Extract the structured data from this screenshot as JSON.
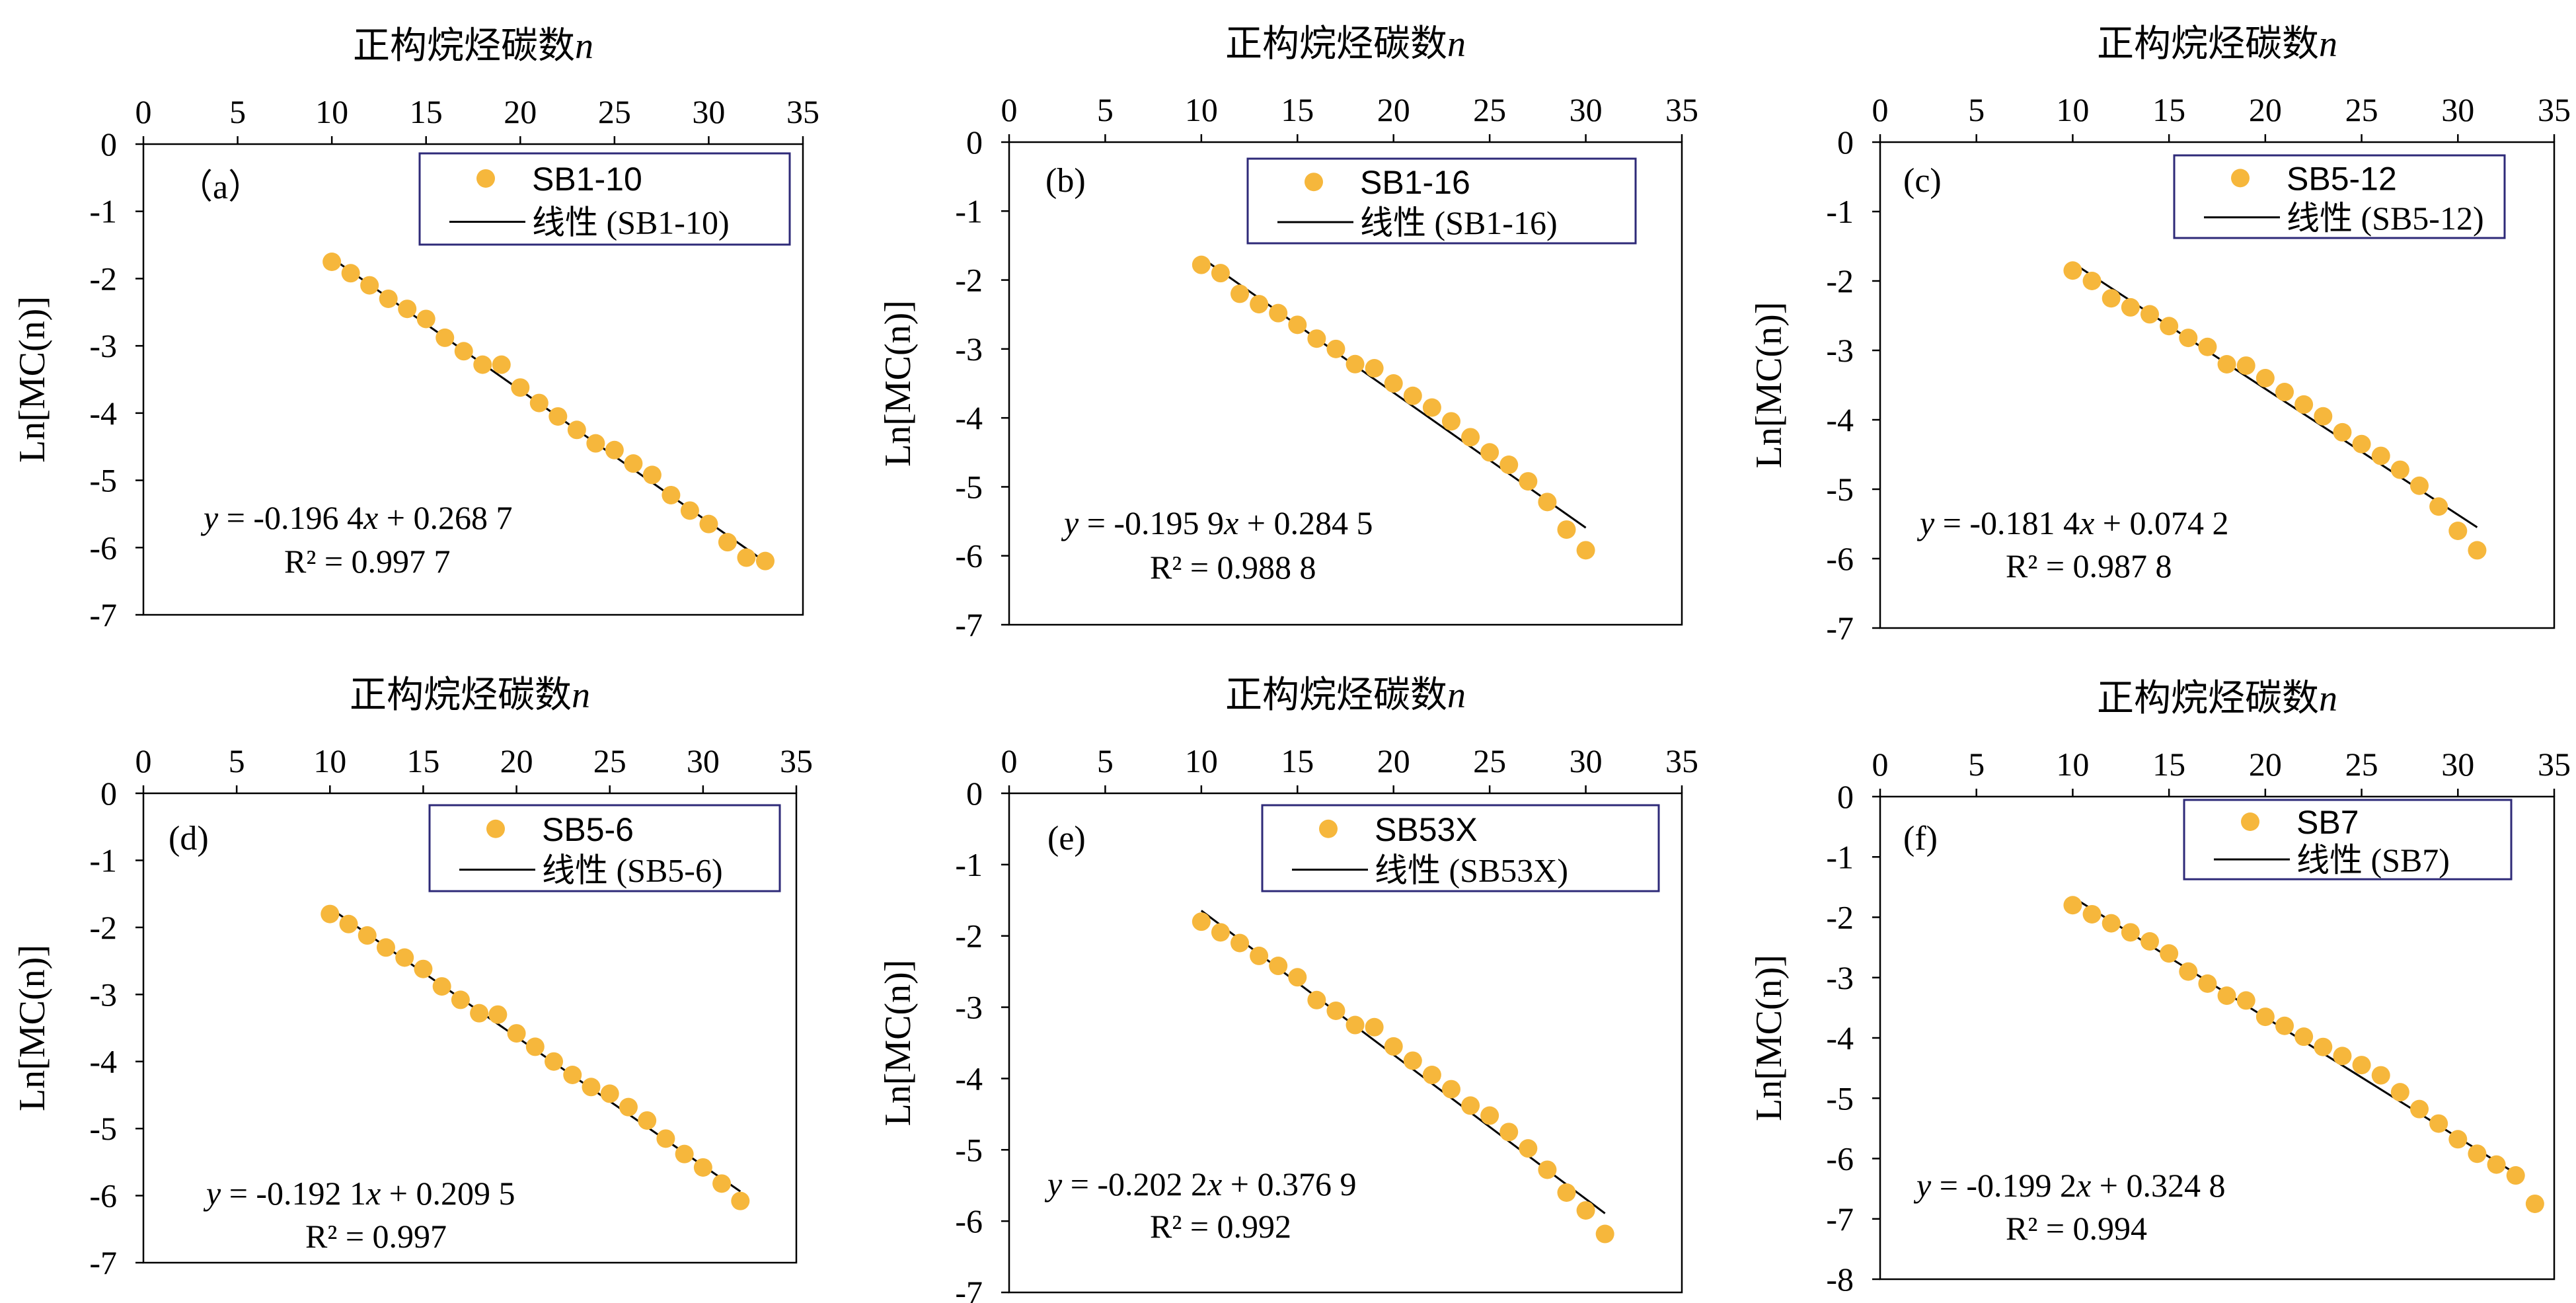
{
  "chart_data": [
    {
      "id": "a",
      "type": "scatter",
      "panel_label": "（a）",
      "xlabel": "正构烷烃碳数",
      "xlabel_var": "n",
      "ylabel": "Ln[MC(n)]",
      "xlim": [
        0,
        35
      ],
      "ylim": [
        -7,
        0
      ],
      "xticks": [
        "0",
        "5",
        "10",
        "15",
        "20",
        "25",
        "30",
        "35"
      ],
      "yticks": [
        "0",
        "-1",
        "-2",
        "-3",
        "-4",
        "-5",
        "-6",
        "-7"
      ],
      "series": [
        {
          "name": "SB1-10",
          "x": [
            10,
            11,
            12,
            13,
            14,
            15,
            16,
            17,
            18,
            19,
            20,
            21,
            22,
            23,
            24,
            25,
            26,
            27,
            28,
            29,
            30,
            31,
            32,
            33
          ],
          "y": [
            -1.75,
            -1.92,
            -2.1,
            -2.3,
            -2.45,
            -2.6,
            -2.88,
            -3.08,
            -3.28,
            -3.28,
            -3.62,
            -3.85,
            -4.05,
            -4.25,
            -4.45,
            -4.55,
            -4.75,
            -4.92,
            -5.22,
            -5.45,
            -5.65,
            -5.92,
            -6.15,
            -6.2
          ],
          "color": "#F6B73C"
        }
      ],
      "trendline": {
        "name": "线性 (SB1-10)",
        "slope": -0.1964,
        "intercept": 0.2687,
        "x_range": [
          10,
          33
        ]
      },
      "equation": {
        "y": "y",
        "mid": " = -0.196 4",
        "x": "x",
        "rest": " + 0.268 7"
      },
      "r2": {
        "label": "R² = 0.997 7"
      },
      "legend_position": "top-right",
      "grid": false
    },
    {
      "id": "b",
      "type": "scatter",
      "panel_label": "(b)",
      "xlabel": "正构烷烃碳数",
      "xlabel_var": "n",
      "ylabel": "Ln[MC(n)]",
      "xlim": [
        0,
        35
      ],
      "ylim": [
        -7,
        0
      ],
      "xticks": [
        "0",
        "5",
        "10",
        "15",
        "20",
        "25",
        "30",
        "35"
      ],
      "yticks": [
        "0",
        "-1",
        "-2",
        "-3",
        "-4",
        "-5",
        "-6",
        "-7"
      ],
      "series": [
        {
          "name": "SB1-16",
          "x": [
            10,
            11,
            12,
            13,
            14,
            15,
            16,
            17,
            18,
            19,
            20,
            21,
            22,
            23,
            24,
            25,
            26,
            27,
            28,
            29,
            30
          ],
          "y": [
            -1.78,
            -1.9,
            -2.2,
            -2.35,
            -2.48,
            -2.65,
            -2.85,
            -3.0,
            -3.22,
            -3.28,
            -3.5,
            -3.68,
            -3.85,
            -4.05,
            -4.28,
            -4.5,
            -4.68,
            -4.92,
            -5.22,
            -5.62,
            -5.92
          ],
          "color": "#F6B73C"
        }
      ],
      "trendline": {
        "name": "线性 (SB1-16)",
        "slope": -0.1959,
        "intercept": 0.2845,
        "x_range": [
          10,
          30
        ]
      },
      "equation": {
        "y": "y",
        "mid": " = -0.195 9",
        "x": "x",
        "rest": " + 0.284 5"
      },
      "r2": {
        "label": "R² = 0.988 8"
      },
      "legend_position": "top-right",
      "grid": false
    },
    {
      "id": "c",
      "type": "scatter",
      "panel_label": "(c)",
      "xlabel": "正构烷烃碳数",
      "xlabel_var": "n",
      "ylabel": "Ln[MC(n)]",
      "xlim": [
        0,
        35
      ],
      "ylim": [
        -7,
        0
      ],
      "xticks": [
        "0",
        "5",
        "10",
        "15",
        "20",
        "25",
        "30",
        "35"
      ],
      "yticks": [
        "0",
        "-1",
        "-2",
        "-3",
        "-4",
        "-5",
        "-6",
        "-7"
      ],
      "series": [
        {
          "name": "SB5-12",
          "x": [
            10,
            11,
            12,
            13,
            14,
            15,
            16,
            17,
            18,
            19,
            20,
            21,
            22,
            23,
            24,
            25,
            26,
            27,
            28,
            29,
            30,
            31
          ],
          "y": [
            -1.85,
            -2.0,
            -2.25,
            -2.38,
            -2.48,
            -2.65,
            -2.82,
            -2.95,
            -3.2,
            -3.22,
            -3.4,
            -3.6,
            -3.78,
            -3.95,
            -4.18,
            -4.35,
            -4.52,
            -4.72,
            -4.95,
            -5.25,
            -5.6,
            -5.88
          ],
          "color": "#F6B73C"
        }
      ],
      "trendline": {
        "name": "线性 (SB5-12)",
        "slope": -0.1814,
        "intercept": 0.0742,
        "x_range": [
          10,
          31
        ]
      },
      "equation": {
        "y": "y",
        "mid": " = -0.181 4",
        "x": "x",
        "rest": " + 0.074 2"
      },
      "r2": {
        "label": "R² = 0.987 8"
      },
      "legend_position": "top-right",
      "grid": false
    },
    {
      "id": "d",
      "type": "scatter",
      "panel_label": "(d)",
      "xlabel": "正构烷烃碳数",
      "xlabel_var": "n",
      "ylabel": "Ln[MC(n)]",
      "xlim": [
        0,
        35
      ],
      "ylim": [
        -7,
        0
      ],
      "xticks": [
        "0",
        "5",
        "10",
        "15",
        "20",
        "25",
        "30",
        "35"
      ],
      "yticks": [
        "0",
        "-1",
        "-2",
        "-3",
        "-4",
        "-5",
        "-6",
        "-7"
      ],
      "series": [
        {
          "name": "SB5-6",
          "x": [
            10,
            11,
            12,
            13,
            14,
            15,
            16,
            17,
            18,
            19,
            20,
            21,
            22,
            23,
            24,
            25,
            26,
            27,
            28,
            29,
            30,
            31,
            32
          ],
          "y": [
            -1.8,
            -1.95,
            -2.12,
            -2.3,
            -2.45,
            -2.62,
            -2.88,
            -3.08,
            -3.28,
            -3.3,
            -3.58,
            -3.78,
            -4.0,
            -4.2,
            -4.38,
            -4.48,
            -4.68,
            -4.88,
            -5.15,
            -5.38,
            -5.58,
            -5.82,
            -6.08
          ],
          "color": "#F6B73C"
        }
      ],
      "trendline": {
        "name": "线性 (SB5-6)",
        "slope": -0.1921,
        "intercept": 0.2095,
        "x_range": [
          10,
          32
        ]
      },
      "equation": {
        "y": "y",
        "mid": " = -0.192 1",
        "x": "x",
        "rest": " + 0.209 5"
      },
      "r2": {
        "label": "R² = 0.997"
      },
      "legend_position": "top-right",
      "grid": false
    },
    {
      "id": "e",
      "type": "scatter",
      "panel_label": "(e)",
      "xlabel": "正构烷烃碳数",
      "xlabel_var": "n",
      "ylabel": "Ln[MC(n)]",
      "xlim": [
        0,
        35
      ],
      "ylim": [
        -7,
        0
      ],
      "xticks": [
        "0",
        "5",
        "10",
        "15",
        "20",
        "25",
        "30",
        "35"
      ],
      "yticks": [
        "0",
        "-1",
        "-2",
        "-3",
        "-4",
        "-5",
        "-6",
        "-7"
      ],
      "series": [
        {
          "name": "SB53X",
          "x": [
            10,
            11,
            12,
            13,
            14,
            15,
            16,
            17,
            18,
            19,
            20,
            21,
            22,
            23,
            24,
            25,
            26,
            27,
            28,
            29,
            30,
            31
          ],
          "y": [
            -1.8,
            -1.95,
            -2.1,
            -2.28,
            -2.42,
            -2.58,
            -2.9,
            -3.05,
            -3.25,
            -3.28,
            -3.55,
            -3.75,
            -3.95,
            -4.15,
            -4.38,
            -4.52,
            -4.75,
            -4.98,
            -5.28,
            -5.6,
            -5.85,
            -6.18
          ],
          "color": "#F6B73C"
        }
      ],
      "trendline": {
        "name": "线性 (SB53X)",
        "slope": -0.2022,
        "intercept": 0.3769,
        "x_range": [
          10,
          31
        ]
      },
      "equation": {
        "y": "y",
        "mid": " = -0.202 2",
        "x": "x",
        "rest": " + 0.376 9"
      },
      "r2": {
        "label": "R² = 0.992"
      },
      "legend_position": "top-right",
      "grid": false
    },
    {
      "id": "f",
      "type": "scatter",
      "panel_label": "(f)",
      "xlabel": "正构烷烃碳数",
      "xlabel_var": "n",
      "ylabel": "Ln[MC(n)]",
      "xlim": [
        0,
        35
      ],
      "ylim": [
        -8,
        0
      ],
      "xticks": [
        "0",
        "5",
        "10",
        "15",
        "20",
        "25",
        "30",
        "35"
      ],
      "yticks": [
        "0",
        "-1",
        "-2",
        "-3",
        "-4",
        "-5",
        "-6",
        "-7",
        "-8"
      ],
      "series": [
        {
          "name": "SB7",
          "x": [
            10,
            11,
            12,
            13,
            14,
            15,
            16,
            17,
            18,
            19,
            20,
            21,
            22,
            23,
            24,
            25,
            26,
            27,
            28,
            29,
            30,
            31,
            32,
            33,
            34
          ],
          "y": [
            -1.8,
            -1.95,
            -2.1,
            -2.25,
            -2.4,
            -2.6,
            -2.9,
            -3.1,
            -3.3,
            -3.38,
            -3.65,
            -3.8,
            -3.98,
            -4.15,
            -4.3,
            -4.45,
            -4.62,
            -4.9,
            -5.18,
            -5.42,
            -5.68,
            -5.92,
            -6.1,
            -6.28,
            -6.75
          ],
          "color": "#F6B73C"
        }
      ],
      "trendline": {
        "name": "线性 (SB7)",
        "slope": -0.1992,
        "intercept": 0.3248,
        "x_range": [
          10,
          33
        ]
      },
      "equation": {
        "y": "y",
        "mid": " = -0.199 2",
        "x": "x",
        "rest": " + 0.324 8"
      },
      "r2": {
        "label": "R² = 0.994"
      },
      "legend_position": "top-right",
      "grid": false
    }
  ]
}
